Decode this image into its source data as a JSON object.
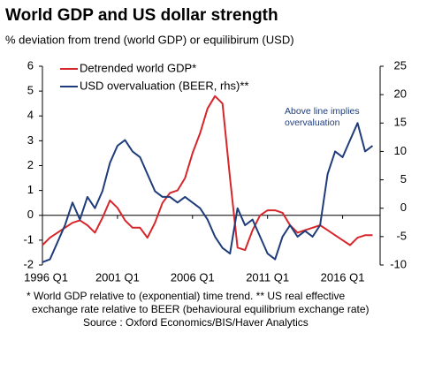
{
  "chart_data": {
    "type": "line",
    "title": "World GDP and US dollar strength",
    "subtitle": "% deviation from trend (world GDP) or equilibirum (USD)",
    "annotation": [
      "Above line implies",
      "overvaluation"
    ],
    "footnotes": [
      "* World GDP relative to (exponential) time trend. ** US real effective",
      "exchange rate relative to BEER (behavioural equilibrium exchange rate)",
      "Source : Oxford Economics/BIS/Haver Analytics"
    ],
    "x": [
      1996,
      1996.5,
      1997,
      1997.5,
      1998,
      1998.5,
      1999,
      1999.5,
      2000,
      2000.5,
      2001,
      2001.5,
      2002,
      2002.5,
      2003,
      2003.5,
      2004,
      2004.5,
      2005,
      2005.5,
      2006,
      2006.5,
      2007,
      2007.5,
      2008,
      2008.5,
      2009,
      2009.5,
      2010,
      2010.5,
      2011,
      2011.5,
      2012,
      2012.5,
      2013,
      2013.5,
      2014,
      2014.5,
      2015,
      2015.5,
      2016,
      2016.5,
      2017,
      2017.5,
      2018
    ],
    "series": [
      {
        "name": "Detrended world GDP*",
        "color": "#d7262b",
        "values": [
          -1.2,
          -0.9,
          -0.7,
          -0.5,
          -0.3,
          -0.2,
          -0.4,
          -0.7,
          -0.1,
          0.6,
          0.3,
          -0.2,
          -0.5,
          -0.5,
          -0.9,
          -0.3,
          0.5,
          0.9,
          1.0,
          1.5,
          2.5,
          3.3,
          4.3,
          4.8,
          4.5,
          1.5,
          -1.3,
          -1.4,
          -0.6,
          0.0,
          0.2,
          0.2,
          0.1,
          -0.4,
          -0.7,
          -0.6,
          -0.5,
          -0.4,
          -0.6,
          -0.8,
          -1.0,
          -1.2,
          -0.9,
          -0.8,
          -0.8
        ]
      },
      {
        "name": "USD overvaluation (BEER, rhs)**",
        "color": "#1f3c7a",
        "axis": "y2",
        "values": [
          -9.5,
          -9,
          -6,
          -3,
          1,
          -2,
          2,
          0,
          3,
          8,
          11,
          12,
          10,
          9,
          6,
          3,
          2,
          2,
          1,
          2,
          1,
          0,
          -2,
          -5,
          -7,
          -8,
          0,
          -3,
          -2,
          -5,
          -8,
          -9,
          -5,
          -3,
          -5,
          -4,
          -5,
          -3,
          6,
          10,
          9,
          12,
          15,
          10,
          11
        ]
      }
    ],
    "xlim": [
      1996,
      2018.5
    ],
    "xticks": [
      {
        "value": 1996,
        "label": "1996 Q1"
      },
      {
        "value": 2001,
        "label": "2001 Q1"
      },
      {
        "value": 2006,
        "label": "2006 Q1"
      },
      {
        "value": 2011,
        "label": "2011 Q1"
      },
      {
        "value": 2016,
        "label": "2016 Q1"
      }
    ],
    "ylim": [
      -2,
      6
    ],
    "yticks": [
      -2,
      -1,
      0,
      1,
      2,
      3,
      4,
      5,
      6
    ],
    "y2lim": [
      -10,
      25
    ],
    "y2ticks": [
      -10,
      -5,
      0,
      5,
      10,
      15,
      20,
      25
    ],
    "legend": "top-left",
    "grid": false
  }
}
